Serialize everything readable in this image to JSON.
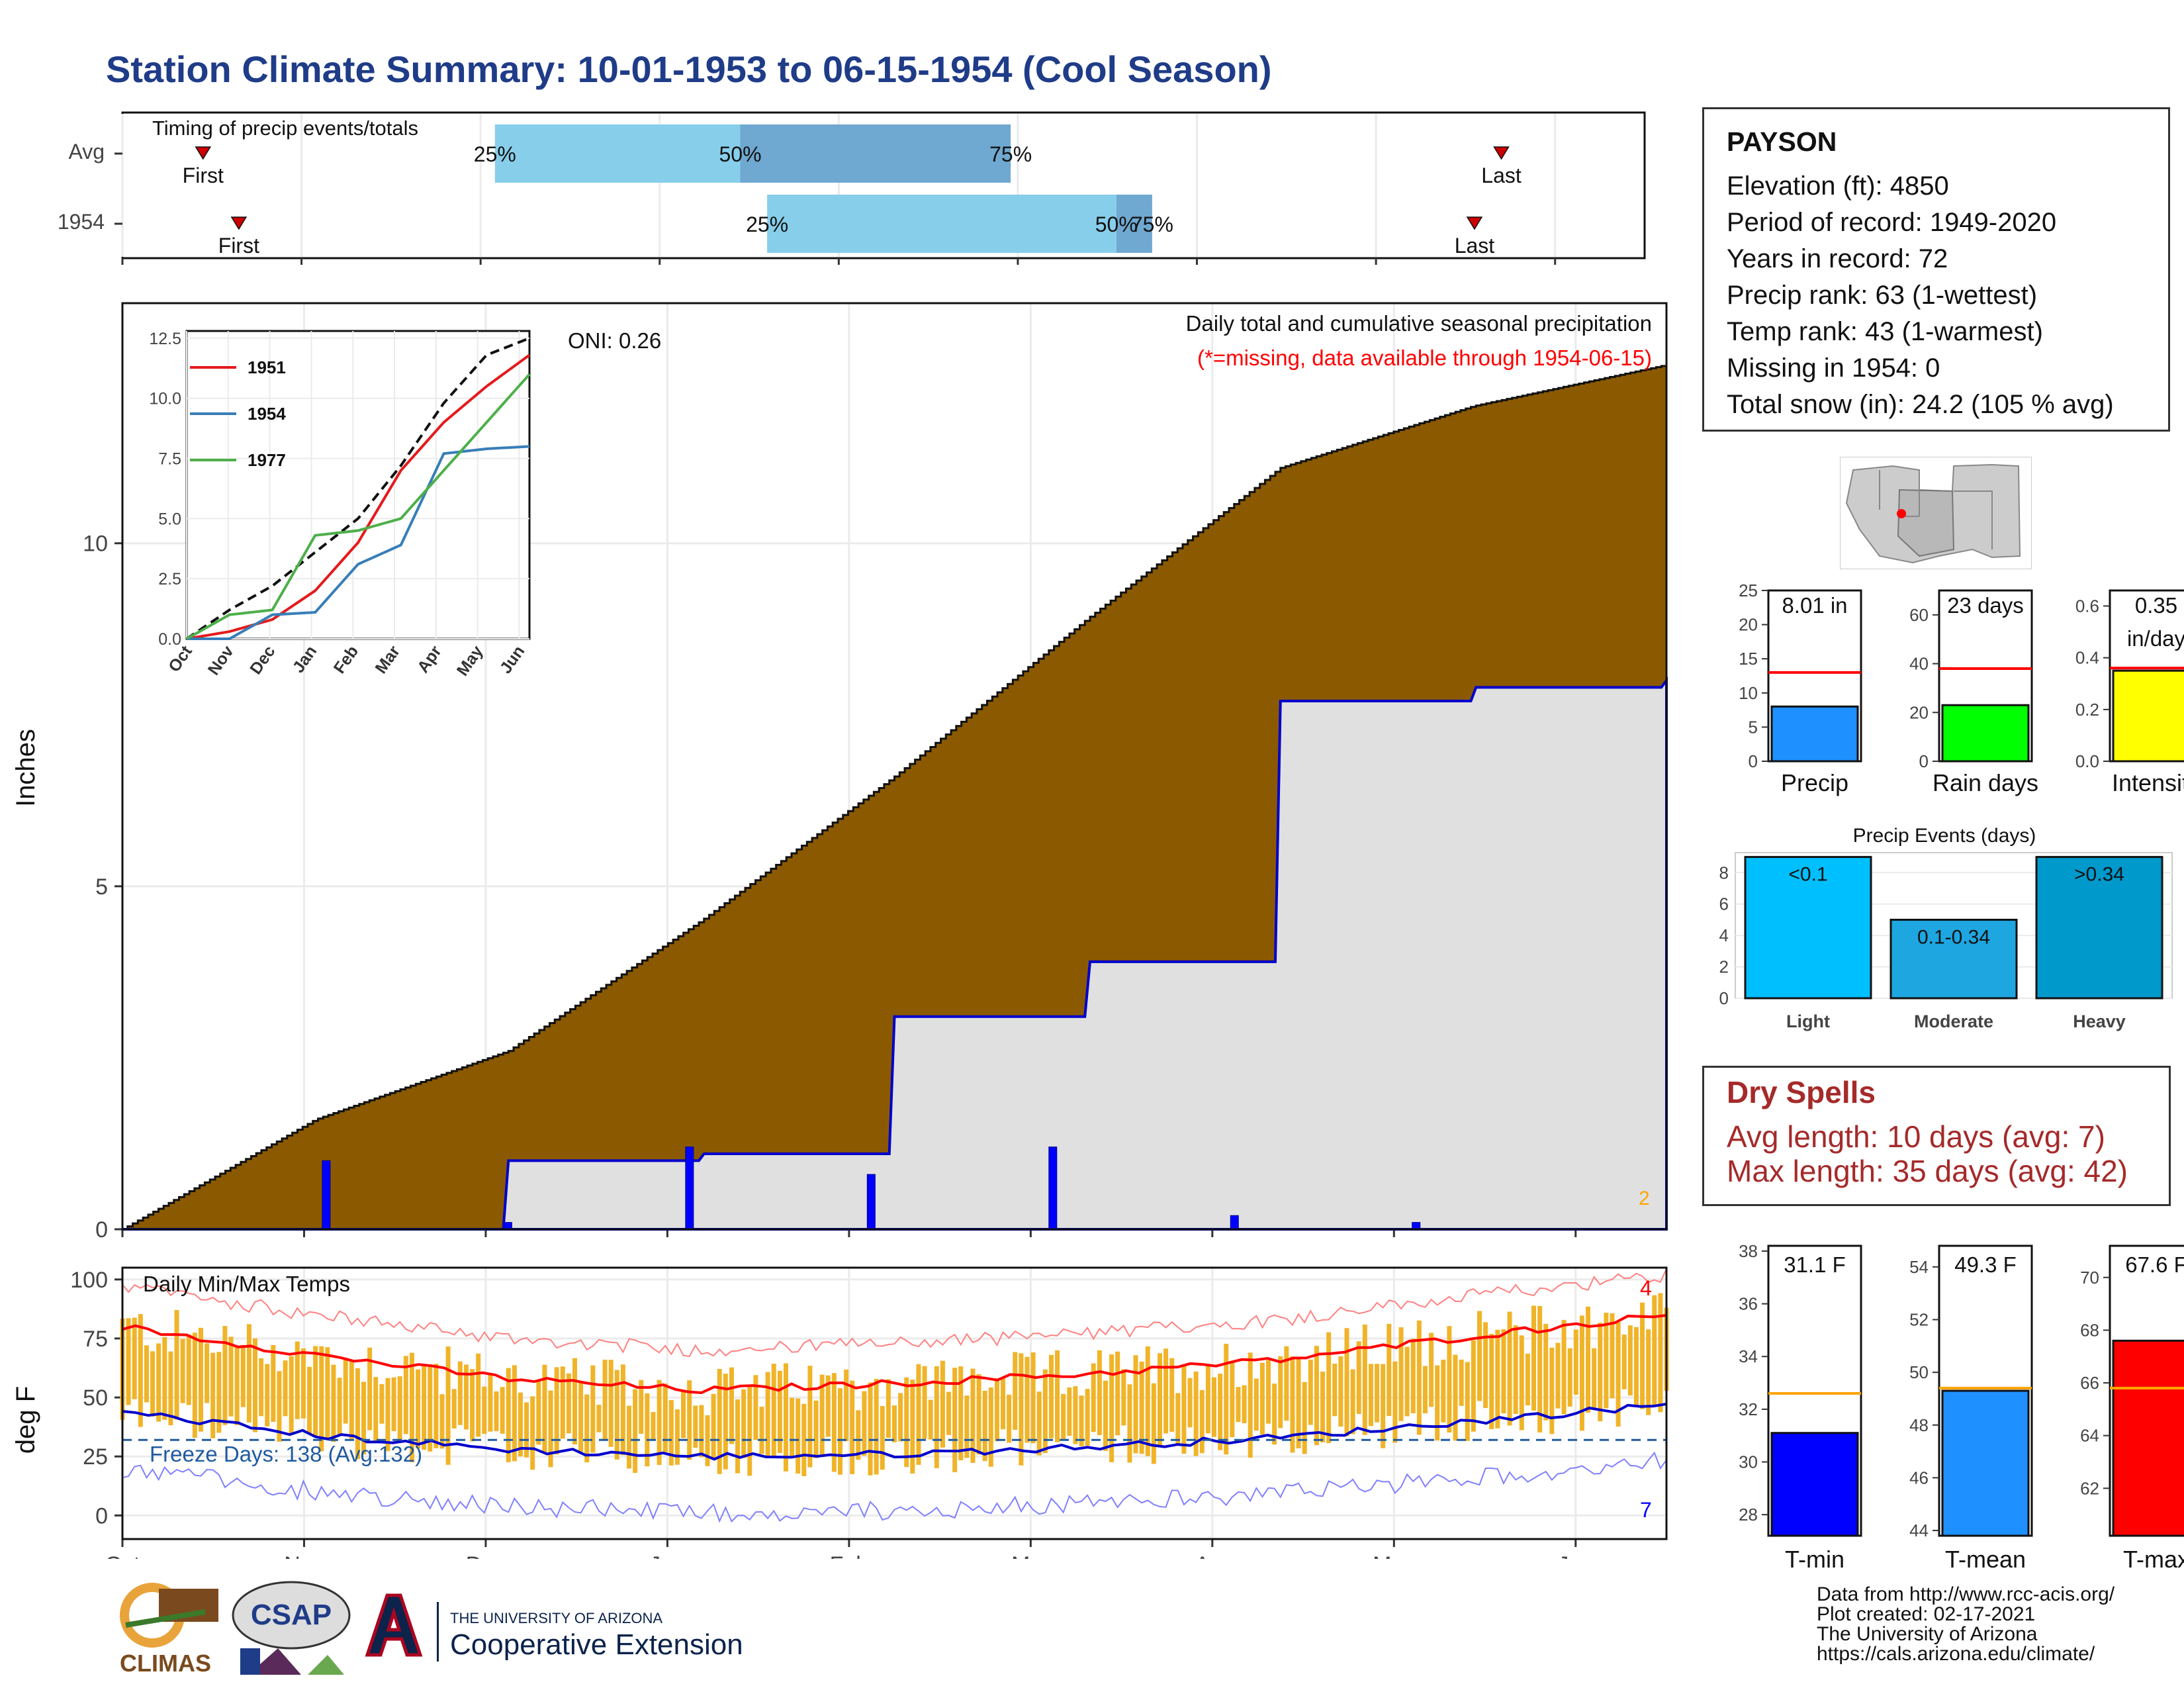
{
  "title": "Station Climate Summary: 10-01-1953 to 06-15-1954 (Cool Season)",
  "timing_panel": {
    "label": "Timing of precip events/totals",
    "rows": [
      {
        "name": "Avg",
        "first_label": "First",
        "last_label": "Last",
        "first_month": 0.45,
        "last_month": 7.7,
        "p25": 2.08,
        "p50": 3.45,
        "p75": 4.96
      },
      {
        "name": "1954",
        "first_label": "First",
        "last_label": "Last",
        "first_month": 0.65,
        "last_month": 7.55,
        "p25": 3.6,
        "p50": 5.55,
        "p75": 5.75
      }
    ],
    "pct_labels": [
      "25%",
      "50%",
      "75%"
    ]
  },
  "main_panel": {
    "annotation_title": "Daily total and cumulative seasonal precipitation",
    "annotation_missing": "(*=missing, data available through 1954-06-15)",
    "oni_label": "ONI: 0.26",
    "ylabel": "Inches",
    "corner_count": "2",
    "y_ticks": [
      "0",
      "5",
      "10"
    ]
  },
  "inset": {
    "legend": [
      "1951",
      "1954",
      "1977"
    ],
    "y_ticks": [
      "0.0",
      "2.5",
      "5.0",
      "7.5",
      "10.0",
      "12.5"
    ],
    "x_ticks": [
      "Oct",
      "Nov",
      "Dec",
      "Jan",
      "Feb",
      "Mar",
      "Apr",
      "May",
      "Jun"
    ]
  },
  "temp_panel": {
    "label": "Daily Min/Max Temps",
    "freeze_label": "Freeze Days: 138 (Avg:132)",
    "ylabel": "deg F",
    "count_top": "4",
    "count_bottom": "7",
    "y_ticks": [
      "0",
      "25",
      "50",
      "75",
      "100"
    ]
  },
  "x_axis": {
    "months": [
      "Oct",
      "Nov",
      "Dec",
      "Jan",
      "Feb",
      "Mar",
      "Apr",
      "May",
      "Jun"
    ]
  },
  "station": {
    "name": "PAYSON",
    "lines": [
      "Elevation (ft): 4850",
      "Period of record: 1949-2020",
      "Years in record: 72",
      "Precip rank: 63 (1-wettest)",
      "Temp rank: 43 (1-warmest)",
      "Missing in 1954: 0",
      "Total snow (in): 24.2 (105 % avg)"
    ]
  },
  "summary_bars": [
    {
      "label": "Precip",
      "value_text": "8.01 in",
      "value": 8.01,
      "avg": 13,
      "ymax": 25,
      "ticks": [
        "0",
        "5",
        "10",
        "15",
        "20",
        "25"
      ],
      "color": "#1e90ff"
    },
    {
      "label": "Rain days",
      "value_text": "23 days",
      "value": 23,
      "avg": 38,
      "ymax": 70,
      "ticks": [
        "0",
        "20",
        "40",
        "60"
      ],
      "color": "#00ff00"
    },
    {
      "label": "Intensity",
      "value_text": "0.35",
      "value_text2": "in/day",
      "value": 0.35,
      "avg": 0.36,
      "ymax": 0.66,
      "ticks": [
        "0.0",
        "0.2",
        "0.4",
        "0.6"
      ],
      "color": "#ffff00"
    }
  ],
  "precip_events": {
    "title": "Precip Events (days)",
    "categories": [
      "Light",
      "Moderate",
      "Heavy"
    ],
    "bar_labels": [
      "<0.1",
      "0.1-0.34",
      ">0.34"
    ],
    "values": [
      9,
      5,
      9
    ],
    "y_ticks": [
      "0",
      "2",
      "4",
      "6",
      "8"
    ],
    "colors": [
      "#00bfff",
      "#1ea6e0",
      "#0099cc"
    ]
  },
  "dry_spells": {
    "title": "Dry Spells",
    "avg_line": "Avg length: 10 days (avg: 7)",
    "max_line": "Max length: 35 days (avg: 42)"
  },
  "temp_summary": [
    {
      "label": "T-min",
      "value_text": "31.1 F",
      "value": 31.1,
      "avg": 32.6,
      "ymin": 27.2,
      "ymax": 38.2,
      "ticks": [
        "28",
        "30",
        "32",
        "34",
        "36",
        "38"
      ],
      "color": "#0000ff"
    },
    {
      "label": "T-mean",
      "value_text": "49.3 F",
      "value": 49.3,
      "avg": 49.4,
      "ymin": 43.8,
      "ymax": 54.8,
      "ticks": [
        "44",
        "46",
        "48",
        "50",
        "52",
        "54"
      ],
      "color": "#1e90ff"
    },
    {
      "label": "T-max",
      "value_text": "67.6 F",
      "value": 67.6,
      "avg": 65.8,
      "ymin": 60.2,
      "ymax": 71.2,
      "ticks": [
        "62",
        "64",
        "66",
        "68",
        "70"
      ],
      "color": "#ff0000"
    }
  ],
  "credits": [
    "Data from http://www.rcc-acis.org/",
    "Plot created: 02-17-2021",
    "The University of Arizona",
    "https://cals.arizona.edu/climate/"
  ],
  "logos": {
    "climas": "CLIMAS",
    "csap": "CSAP",
    "ua_top": "THE UNIVERSITY OF ARIZONA",
    "ua_bottom": "Cooperative Extension"
  },
  "chart_data": [
    {
      "type": "area",
      "title": "Daily total and cumulative seasonal precipitation",
      "ylabel": "Inches",
      "ylim": [
        0,
        13.5
      ],
      "x": [
        "Oct",
        "Nov",
        "Dec",
        "Jan",
        "Feb",
        "Mar",
        "Apr",
        "May",
        "Jun-15"
      ],
      "series": [
        {
          "name": "avg cumulative",
          "values": [
            0,
            1.6,
            2.6,
            4.5,
            6.6,
            8.9,
            11.1,
            12.0,
            12.6
          ]
        },
        {
          "name": "1954 cumulative",
          "values": [
            0,
            0,
            1.0,
            1.1,
            3.1,
            3.9,
            7.7,
            7.9,
            8.0
          ]
        }
      ]
    },
    {
      "type": "line",
      "title": "Daily Min/Max Temps",
      "ylabel": "deg F",
      "ylim": [
        -10,
        105
      ],
      "x": [
        "Oct",
        "Nov",
        "Dec",
        "Jan",
        "Feb",
        "Mar",
        "Apr",
        "May",
        "Jun"
      ],
      "series": [
        {
          "name": "avg max",
          "values": [
            80,
            68,
            58,
            53,
            56,
            60,
            66,
            76,
            85
          ]
        },
        {
          "name": "avg min",
          "values": [
            44,
            34,
            28,
            25,
            26,
            29,
            33,
            40,
            47
          ]
        }
      ]
    },
    {
      "type": "line",
      "x": [
        "Oct",
        "Nov",
        "Dec",
        "Jan",
        "Feb",
        "Mar",
        "Apr",
        "May",
        "Jun"
      ],
      "ylim": [
        0,
        12.5
      ],
      "series": [
        {
          "name": "avg",
          "values": [
            0,
            1.2,
            2.2,
            3.6,
            5.0,
            7.2,
            9.8,
            11.8,
            12.5
          ]
        },
        {
          "name": "1951",
          "values": [
            0,
            0.3,
            0.8,
            2.0,
            4.0,
            7.0,
            9.0,
            10.5,
            11.8
          ]
        },
        {
          "name": "1954",
          "values": [
            0,
            0,
            1.0,
            1.1,
            3.1,
            3.9,
            7.7,
            7.9,
            8.0
          ]
        },
        {
          "name": "1977",
          "values": [
            0,
            1.0,
            1.2,
            4.3,
            4.5,
            5.0,
            7.0,
            9.0,
            11.0
          ]
        }
      ]
    }
  ]
}
